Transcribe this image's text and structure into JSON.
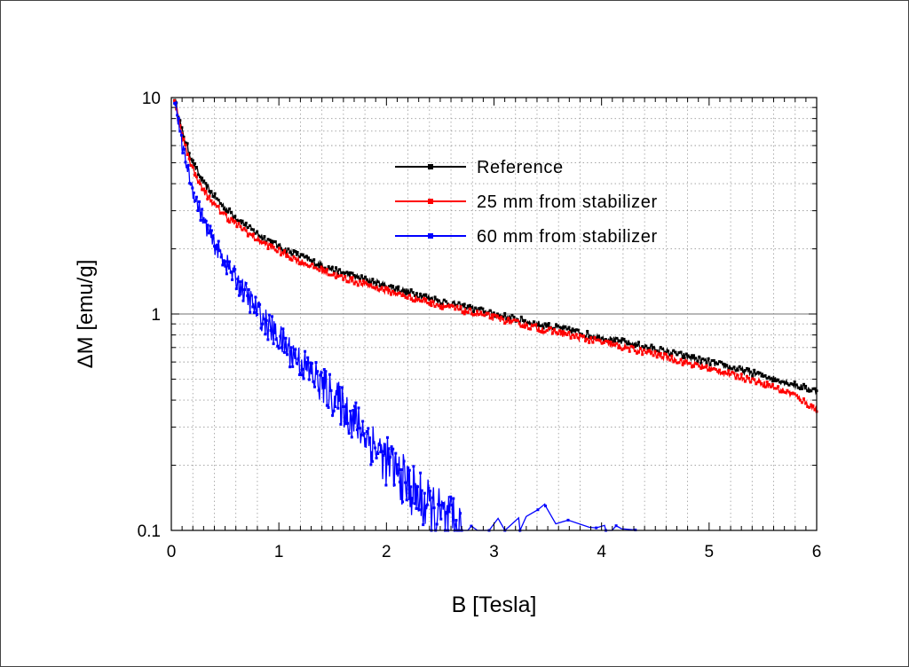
{
  "chart_data": {
    "type": "line",
    "title": "",
    "xlabel": "B [Tesla]",
    "ylabel": "ΔM [emu/g]",
    "xlim": [
      0,
      6
    ],
    "ylim": [
      0.1,
      10
    ],
    "y_scale": "log",
    "x_ticks": [
      0,
      1,
      2,
      3,
      4,
      5,
      6
    ],
    "x_tick_labels": [
      "0",
      "1",
      "2",
      "3",
      "4",
      "5",
      "6"
    ],
    "y_ticks": [
      0.1,
      1,
      10
    ],
    "y_tick_labels": [
      "0.1",
      "1",
      "10"
    ],
    "grid": "dotted minor grid at log decades, solid line at 1",
    "legend_position": "upper right",
    "colors": {
      "axis": "#000000",
      "grid": "#9a9a9a",
      "reference_line": "#707070"
    },
    "series": [
      {
        "name": "Reference",
        "color": "#000000",
        "x": [
          0.03,
          0.1,
          0.2,
          0.3,
          0.4,
          0.5,
          0.6,
          0.7,
          0.8,
          1.0,
          1.2,
          1.5,
          2.0,
          2.5,
          3.0,
          3.5,
          4.0,
          4.5,
          5.0,
          5.5,
          6.0
        ],
        "y": [
          10,
          7.0,
          5.0,
          4.0,
          3.5,
          3.1,
          2.8,
          2.55,
          2.35,
          2.05,
          1.85,
          1.6,
          1.35,
          1.15,
          1.0,
          0.88,
          0.78,
          0.69,
          0.6,
          0.52,
          0.44
        ]
      },
      {
        "name": "25 mm from stabilizer",
        "color": "#ff0000",
        "x": [
          0.03,
          0.1,
          0.2,
          0.3,
          0.4,
          0.5,
          0.6,
          0.7,
          0.8,
          1.0,
          1.2,
          1.5,
          2.0,
          2.5,
          3.0,
          3.5,
          4.0,
          4.5,
          5.0,
          5.5,
          5.8,
          6.0
        ],
        "y": [
          10,
          6.6,
          4.7,
          3.7,
          3.2,
          2.85,
          2.6,
          2.4,
          2.2,
          1.95,
          1.75,
          1.52,
          1.28,
          1.1,
          0.96,
          0.84,
          0.74,
          0.65,
          0.56,
          0.48,
          0.42,
          0.36
        ]
      },
      {
        "name": "60 mm from stabilizer",
        "color": "#0000ff",
        "x": [
          0.03,
          0.1,
          0.2,
          0.3,
          0.4,
          0.5,
          0.6,
          0.7,
          0.8,
          0.9,
          1.0,
          1.2,
          1.4,
          1.6,
          1.8,
          2.0,
          2.2,
          2.4,
          2.55,
          2.7,
          2.9,
          3.3,
          4.0,
          4.5
        ],
        "y": [
          10,
          6.0,
          3.7,
          2.7,
          2.1,
          1.75,
          1.45,
          1.22,
          1.03,
          0.88,
          0.77,
          0.6,
          0.47,
          0.37,
          0.28,
          0.21,
          0.16,
          0.125,
          0.11,
          0.1,
          0.1,
          0.1,
          0.1,
          0.1
        ]
      }
    ]
  }
}
